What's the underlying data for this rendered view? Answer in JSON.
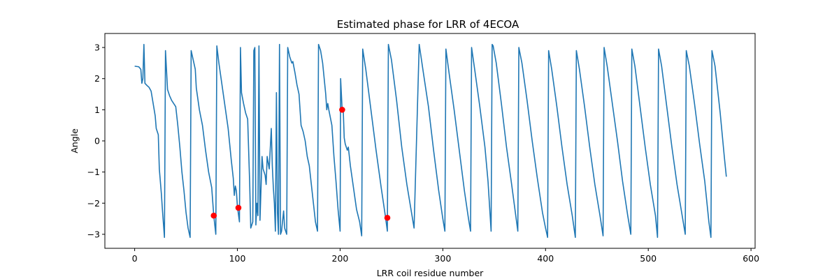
{
  "chart_data": {
    "type": "line",
    "title": "Estimated phase for LRR of 4ECOA",
    "xlabel": "LRR coil residue number",
    "ylabel": "Angle",
    "xlim": [
      -29,
      604
    ],
    "ylim": [
      -3.45,
      3.45
    ],
    "xticks": [
      0,
      100,
      200,
      300,
      400,
      500,
      600
    ],
    "xtick_labels": [
      "0",
      "100",
      "200",
      "300",
      "400",
      "500",
      "600"
    ],
    "yticks": [
      -3,
      -2,
      -1,
      0,
      1,
      2,
      3
    ],
    "ytick_labels": [
      "−3",
      "−2",
      "−1",
      "0",
      "1",
      "2",
      "3"
    ],
    "grid": false,
    "line_color": "#1f77b4",
    "marker_color": "#ff0000",
    "series": [
      {
        "points": [
          [
            0,
            2.4
          ],
          [
            4,
            2.38
          ],
          [
            6,
            2.3
          ],
          [
            7,
            1.85
          ],
          [
            8,
            2.0
          ],
          [
            9,
            3.1
          ],
          [
            10,
            1.85
          ],
          [
            12,
            1.78
          ],
          [
            14,
            1.72
          ],
          [
            16,
            1.6
          ],
          [
            18,
            1.2
          ],
          [
            20,
            0.8
          ],
          [
            21,
            0.4
          ],
          [
            23,
            0.2
          ],
          [
            24,
            -0.9
          ],
          [
            26,
            -1.7
          ],
          [
            27,
            -2.2
          ],
          [
            29,
            -3.1
          ],
          [
            30,
            2.9
          ],
          [
            32,
            1.65
          ],
          [
            34,
            1.45
          ],
          [
            36,
            1.3
          ],
          [
            38,
            1.2
          ],
          [
            40,
            1.1
          ],
          [
            42,
            0.5
          ],
          [
            44,
            -0.2
          ],
          [
            46,
            -1.0
          ],
          [
            48,
            -1.6
          ],
          [
            50,
            -2.3
          ],
          [
            52,
            -2.8
          ],
          [
            54,
            -3.1
          ],
          [
            55,
            2.9
          ],
          [
            57,
            2.6
          ],
          [
            59,
            2.3
          ],
          [
            60,
            1.7
          ],
          [
            63,
            1.0
          ],
          [
            66,
            0.5
          ],
          [
            69,
            -0.3
          ],
          [
            72,
            -1.0
          ],
          [
            75,
            -1.5
          ],
          [
            77,
            -2.4
          ],
          [
            79,
            -3.0
          ],
          [
            80,
            3.05
          ],
          [
            82,
            2.5
          ],
          [
            85,
            1.8
          ],
          [
            88,
            1.1
          ],
          [
            91,
            0.4
          ],
          [
            94,
            -0.6
          ],
          [
            96,
            -1.2
          ],
          [
            97,
            -1.75
          ],
          [
            98,
            -1.45
          ],
          [
            99,
            -1.6
          ],
          [
            100,
            -2.1
          ],
          [
            102,
            -2.6
          ],
          [
            103,
            3.0
          ],
          [
            104,
            1.55
          ],
          [
            106,
            1.2
          ],
          [
            108,
            0.9
          ],
          [
            110,
            0.7
          ],
          [
            112,
            -1.4
          ],
          [
            113,
            -2.8
          ],
          [
            115,
            -2.6
          ],
          [
            116,
            2.9
          ],
          [
            117,
            3.0
          ],
          [
            118,
            -2.7
          ],
          [
            119,
            -2.0
          ],
          [
            120,
            -2.4
          ],
          [
            121,
            3.05
          ],
          [
            122,
            -2.55
          ],
          [
            124,
            -0.5
          ],
          [
            125,
            -0.9
          ],
          [
            127,
            -1.1
          ],
          [
            128,
            -1.4
          ],
          [
            129,
            -0.5
          ],
          [
            131,
            -0.9
          ],
          [
            133,
            0.4
          ],
          [
            134,
            -0.8
          ],
          [
            135,
            -1.5
          ],
          [
            136,
            -2.0
          ],
          [
            137,
            -2.9
          ],
          [
            138,
            1.55
          ],
          [
            139,
            -2.3
          ],
          [
            140,
            -3.0
          ],
          [
            141,
            3.1
          ],
          [
            142,
            -3.0
          ],
          [
            143,
            -2.9
          ],
          [
            145,
            -2.25
          ],
          [
            146,
            -2.8
          ],
          [
            148,
            -3.0
          ],
          [
            149,
            3.0
          ],
          [
            151,
            2.7
          ],
          [
            153,
            2.5
          ],
          [
            154,
            2.55
          ],
          [
            156,
            2.2
          ],
          [
            158,
            1.8
          ],
          [
            160,
            1.5
          ],
          [
            162,
            0.5
          ],
          [
            164,
            0.3
          ],
          [
            166,
            0.0
          ],
          [
            168,
            -0.5
          ],
          [
            170,
            -0.8
          ],
          [
            172,
            -1.4
          ],
          [
            174,
            -2.0
          ],
          [
            176,
            -2.6
          ],
          [
            178,
            -2.9
          ],
          [
            179,
            3.1
          ],
          [
            181,
            2.9
          ],
          [
            183,
            2.5
          ],
          [
            186,
            1.5
          ],
          [
            187,
            1.0
          ],
          [
            188,
            1.2
          ],
          [
            189,
            1.0
          ],
          [
            192,
            0.5
          ],
          [
            194,
            -0.5
          ],
          [
            196,
            -1.3
          ],
          [
            198,
            -2.2
          ],
          [
            200,
            -2.9
          ],
          [
            200.5,
            2.0
          ],
          [
            202,
            1.0
          ],
          [
            203,
            1.05
          ],
          [
            204,
            0.1
          ],
          [
            205,
            -0.1
          ],
          [
            206,
            -0.2
          ],
          [
            207,
            -0.3
          ],
          [
            208,
            -0.2
          ],
          [
            210,
            -0.8
          ],
          [
            213,
            -1.5
          ],
          [
            216,
            -2.2
          ],
          [
            219,
            -2.6
          ],
          [
            221,
            -3.05
          ],
          [
            222,
            2.95
          ],
          [
            225,
            2.3
          ],
          [
            230,
            1.0
          ],
          [
            235,
            -0.3
          ],
          [
            240,
            -1.5
          ],
          [
            244,
            -2.4
          ],
          [
            246,
            -2.9
          ],
          [
            247,
            3.1
          ],
          [
            250,
            2.6
          ],
          [
            255,
            1.3
          ],
          [
            260,
            -0.2
          ],
          [
            265,
            -1.4
          ],
          [
            270,
            -2.4
          ],
          [
            272,
            -2.8
          ],
          [
            277,
            3.1
          ],
          [
            281,
            2.2
          ],
          [
            286,
            1.1
          ],
          [
            291,
            -0.3
          ],
          [
            296,
            -1.6
          ],
          [
            300,
            -2.5
          ],
          [
            302,
            -2.9
          ],
          [
            303,
            2.95
          ],
          [
            306,
            2.2
          ],
          [
            311,
            1.0
          ],
          [
            316,
            -0.3
          ],
          [
            321,
            -1.6
          ],
          [
            325,
            -2.5
          ],
          [
            327,
            -2.9
          ],
          [
            328,
            3.0
          ],
          [
            331,
            2.3
          ],
          [
            336,
            1.1
          ],
          [
            341,
            -0.2
          ],
          [
            344,
            -1.3
          ],
          [
            347,
            -2.9
          ],
          [
            348,
            3.1
          ],
          [
            349,
            3.05
          ],
          [
            352,
            2.5
          ],
          [
            357,
            1.2
          ],
          [
            362,
            -0.2
          ],
          [
            367,
            -1.4
          ],
          [
            371,
            -2.4
          ],
          [
            373,
            -2.9
          ],
          [
            374,
            3.0
          ],
          [
            377,
            2.5
          ],
          [
            382,
            1.3
          ],
          [
            387,
            0.0
          ],
          [
            392,
            -1.2
          ],
          [
            397,
            -2.3
          ],
          [
            400,
            -2.8
          ],
          [
            402,
            -3.1
          ],
          [
            403,
            2.9
          ],
          [
            406,
            2.3
          ],
          [
            411,
            1.1
          ],
          [
            416,
            -0.2
          ],
          [
            421,
            -1.4
          ],
          [
            426,
            -2.4
          ],
          [
            429,
            -3.1
          ],
          [
            430,
            2.9
          ],
          [
            433,
            2.3
          ],
          [
            438,
            1.1
          ],
          [
            443,
            -0.2
          ],
          [
            448,
            -1.4
          ],
          [
            453,
            -2.4
          ],
          [
            456,
            -3.05
          ],
          [
            457,
            3.0
          ],
          [
            460,
            2.4
          ],
          [
            465,
            1.2
          ],
          [
            470,
            0.0
          ],
          [
            475,
            -1.3
          ],
          [
            480,
            -2.4
          ],
          [
            483,
            -3.0
          ],
          [
            484,
            2.95
          ],
          [
            487,
            2.4
          ],
          [
            492,
            1.1
          ],
          [
            497,
            -0.2
          ],
          [
            502,
            -1.4
          ],
          [
            507,
            -2.4
          ],
          [
            509,
            -3.1
          ],
          [
            510,
            2.95
          ],
          [
            513,
            2.4
          ],
          [
            518,
            1.1
          ],
          [
            523,
            -0.2
          ],
          [
            528,
            -1.4
          ],
          [
            533,
            -2.4
          ],
          [
            536,
            -3.0
          ],
          [
            537,
            2.9
          ],
          [
            540,
            2.4
          ],
          [
            545,
            1.2
          ],
          [
            550,
            -0.1
          ],
          [
            555,
            -1.3
          ],
          [
            559,
            -2.6
          ],
          [
            561,
            -3.1
          ],
          [
            562,
            2.9
          ],
          [
            565,
            2.4
          ],
          [
            570,
            0.9
          ],
          [
            574,
            -0.5
          ],
          [
            576,
            -1.15
          ]
        ]
      }
    ],
    "markers": [
      [
        77,
        -2.4
      ],
      [
        101,
        -2.15
      ],
      [
        202,
        1.0
      ],
      [
        246,
        -2.47
      ]
    ]
  }
}
